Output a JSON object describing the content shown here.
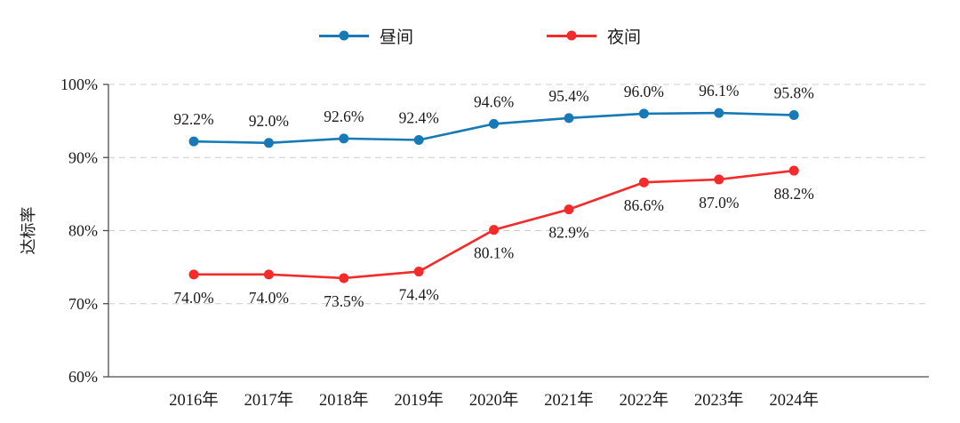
{
  "chart_data": {
    "type": "line",
    "title": "",
    "ylabel": "达标率",
    "ylim": [
      60,
      100
    ],
    "ytick_values": [
      60,
      70,
      80,
      90,
      100
    ],
    "ytick_labels": [
      "60%",
      "70%",
      "80%",
      "90%",
      "100%"
    ],
    "categories": [
      "2016年",
      "2017年",
      "2018年",
      "2019年",
      "2020年",
      "2021年",
      "2022年",
      "2023年",
      "2024年"
    ],
    "grid": "horizontal-dashed",
    "legend_position": "top-center",
    "colors": {
      "axis": "#4d4d4d",
      "gridline": "#cccccc",
      "text": "#1a1a1a"
    },
    "series": [
      {
        "name": "昼间",
        "color": "#1779b5",
        "marker": "circle",
        "label_position": "above",
        "values": [
          92.2,
          92.0,
          92.6,
          92.4,
          94.6,
          95.4,
          96.0,
          96.1,
          95.8
        ],
        "labels": [
          "92.2%",
          "92.0%",
          "92.6%",
          "92.4%",
          "94.6%",
          "95.4%",
          "96.0%",
          "96.1%",
          "95.8%"
        ]
      },
      {
        "name": "夜间",
        "color": "#f32b2b",
        "marker": "circle",
        "label_position": "below",
        "values": [
          74.0,
          74.0,
          73.5,
          74.4,
          80.1,
          82.9,
          86.6,
          87.0,
          88.2
        ],
        "labels": [
          "74.0%",
          "74.0%",
          "73.5%",
          "74.4%",
          "80.1%",
          "82.9%",
          "86.6%",
          "87.0%",
          "88.2%"
        ]
      }
    ]
  }
}
